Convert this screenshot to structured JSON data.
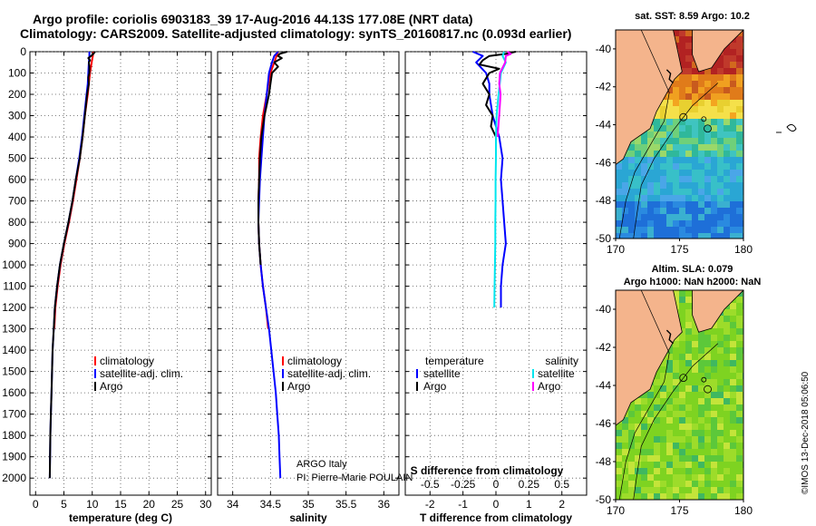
{
  "header": {
    "line1": "Argo profile: coriolis 6903183_39 17-Aug-2016 44.13S 177.08E (NRT data)",
    "line2": "Climatology: CARS2009. Satellite-adjusted climatology: synTS_20160817.nc (0.093d earlier)"
  },
  "colors": {
    "climatology": "#ff0000",
    "satellite": "#0000ff",
    "argo": "#000000",
    "s_satellite": "#00e5ee",
    "s_argo": "#ff00ff",
    "land": "#f4b48c",
    "grid": "#555555"
  },
  "chart_data": [
    {
      "id": "temperature",
      "type": "line",
      "xlabel": "temperature (deg C)",
      "xlim": [
        -1,
        31
      ],
      "xticks": [
        0,
        5,
        10,
        15,
        20,
        25,
        30
      ],
      "xtick_labels": [
        "0",
        "5",
        "10",
        "15",
        "20",
        "25",
        "30"
      ],
      "ylim": [
        2080,
        0
      ],
      "yticks": [
        0,
        100,
        200,
        300,
        400,
        500,
        600,
        700,
        800,
        900,
        1000,
        1100,
        1200,
        1300,
        1400,
        1500,
        1600,
        1700,
        1800,
        1900,
        2000
      ],
      "ytick_labels": [
        "0",
        "100",
        "200",
        "300",
        "400",
        "500",
        "600",
        "700",
        "800",
        "900",
        "1000",
        "1100",
        "1200",
        "1300",
        "1400",
        "1500",
        "1600",
        "1700",
        "1800",
        "1900",
        "2000"
      ],
      "legend": [
        "climatology",
        "satellite-adj. clim.",
        "Argo"
      ],
      "series": [
        {
          "name": "climatology",
          "color": "#ff0000",
          "depth": [
            0,
            20,
            50,
            100,
            150,
            200,
            300,
            400,
            500,
            600,
            700,
            800,
            900,
            1000,
            1100,
            1200,
            1300
          ],
          "values": [
            10.2,
            10.1,
            9.9,
            9.6,
            9.4,
            9.2,
            8.7,
            8.3,
            7.8,
            7.2,
            6.6,
            5.9,
            5.1,
            4.4,
            3.9,
            3.5,
            3.3
          ]
        },
        {
          "name": "satellite-adj. clim.",
          "color": "#0000ff",
          "depth": [
            0,
            20,
            50,
            100,
            150,
            200,
            300,
            400,
            500,
            600,
            700,
            800,
            900,
            1000,
            1100,
            1200,
            1300,
            1400,
            1500,
            1600,
            1700,
            1800,
            1900,
            2000
          ],
          "values": [
            9.5,
            9.5,
            9.4,
            9.3,
            9.2,
            9.0,
            8.6,
            8.2,
            7.7,
            7.1,
            6.5,
            5.8,
            5.0,
            4.3,
            3.8,
            3.4,
            3.2,
            3.0,
            2.9,
            2.8,
            2.7,
            2.6,
            2.55,
            2.5
          ]
        },
        {
          "name": "Argo",
          "color": "#000000",
          "depth": [
            0,
            10,
            20,
            30,
            40,
            50,
            70,
            100,
            120,
            150,
            200,
            250,
            300,
            400,
            500,
            600,
            700,
            800,
            900,
            1000,
            1100,
            1200,
            1300,
            1400,
            1500,
            1600,
            1700,
            1800,
            1900,
            2000
          ],
          "values": [
            10.5,
            10.2,
            9.8,
            9.3,
            9.6,
            9.4,
            9.5,
            9.5,
            9.3,
            9.4,
            9.1,
            8.9,
            8.7,
            8.3,
            7.8,
            7.1,
            6.5,
            5.8,
            5.0,
            4.3,
            3.8,
            3.4,
            3.2,
            3.0,
            2.9,
            2.8,
            2.7,
            2.6,
            2.55,
            2.5
          ]
        }
      ]
    },
    {
      "id": "salinity",
      "type": "line",
      "xlabel": "salinity",
      "xlim": [
        33.8,
        36.2
      ],
      "xticks": [
        34,
        34.5,
        35,
        35.5,
        36
      ],
      "xtick_labels": [
        "34",
        "34.5",
        "35",
        "35.5",
        "36"
      ],
      "ylim": [
        2080,
        0
      ],
      "legend": [
        "climatology",
        "satellite-adj. clim.",
        "Argo"
      ],
      "series": [
        {
          "name": "climatology",
          "color": "#ff0000",
          "depth": [
            0,
            20,
            50,
            100,
            200,
            300,
            400,
            500,
            600,
            700,
            800,
            900,
            1000,
            1100,
            1200,
            1300
          ],
          "values": [
            34.6,
            34.58,
            34.55,
            34.5,
            34.45,
            34.4,
            34.37,
            34.35,
            34.35,
            34.34,
            34.34,
            34.35,
            34.37,
            34.4,
            34.44,
            34.47
          ]
        },
        {
          "name": "satellite-adj. clim.",
          "color": "#0000ff",
          "depth": [
            0,
            20,
            50,
            100,
            200,
            300,
            400,
            500,
            600,
            700,
            800,
            900,
            1000,
            1100,
            1200,
            1300,
            1400,
            1500,
            1600,
            1700,
            1800,
            1900,
            2000
          ],
          "values": [
            34.6,
            34.55,
            34.52,
            34.48,
            34.45,
            34.42,
            34.4,
            34.38,
            34.36,
            34.35,
            34.34,
            34.35,
            34.37,
            34.4,
            34.44,
            34.48,
            34.51,
            34.54,
            34.57,
            34.59,
            34.61,
            34.62,
            34.63
          ]
        },
        {
          "name": "Argo",
          "color": "#000000",
          "depth": [
            0,
            10,
            20,
            30,
            50,
            70,
            100,
            150,
            200,
            300,
            400,
            500,
            600,
            700,
            800,
            900,
            1000
          ],
          "values": [
            34.72,
            34.62,
            34.6,
            34.65,
            34.55,
            34.6,
            34.52,
            34.5,
            34.48,
            34.42,
            34.38,
            34.36,
            34.35,
            34.34,
            34.34,
            34.35,
            34.37
          ]
        }
      ]
    },
    {
      "id": "difference",
      "type": "line",
      "xlabel": "T difference from climatology",
      "top_label": "S difference from climatology",
      "xlim": [
        -2.75,
        2.75
      ],
      "xticks": [
        -2,
        -1,
        0,
        1,
        2
      ],
      "xtick_labels": [
        "-2",
        "-1",
        "0",
        "1",
        "2"
      ],
      "s_ticks": [
        -0.5,
        -0.25,
        0,
        0.25,
        0.5
      ],
      "s_tick_labels": [
        "-0.5",
        "-0.25",
        "0",
        "0.25",
        "0.5"
      ],
      "ylim": [
        2080,
        0
      ],
      "legend_t_title": "temperature",
      "legend_s_title": "salinity",
      "legend_t": [
        "satellite",
        "Argo"
      ],
      "legend_s": [
        "satellite",
        "Argo"
      ],
      "series": [
        {
          "name": "T satellite",
          "color": "#0000ff",
          "depth": [
            0,
            20,
            50,
            100,
            150,
            200,
            300,
            400,
            500,
            600,
            700,
            800,
            900,
            1000,
            1100,
            1200
          ],
          "values": [
            -0.7,
            -0.4,
            -0.6,
            -0.3,
            -0.2,
            -0.2,
            -0.1,
            0.1,
            0.2,
            0.15,
            0.2,
            0.25,
            0.3,
            0.2,
            0.15,
            0.15
          ]
        },
        {
          "name": "T Argo",
          "color": "#000000",
          "depth": [
            0,
            10,
            20,
            40,
            60,
            80,
            100,
            150,
            200,
            250,
            300,
            350,
            400
          ],
          "values": [
            0.6,
            0.3,
            -0.2,
            -0.4,
            -0.5,
            0.1,
            -0.2,
            -0.4,
            -0.2,
            -0.3,
            -0.1,
            -0.15,
            0.0
          ]
        },
        {
          "name": "S satellite",
          "color": "#00e5ee",
          "depth": [
            0,
            20,
            50,
            100,
            200,
            300,
            400,
            500,
            600,
            700,
            800,
            900,
            1000,
            1100,
            1200
          ],
          "values": [
            0.25,
            0.2,
            0.3,
            0.15,
            0.08,
            0.02,
            0.0,
            0.0,
            -0.01,
            -0.01,
            -0.02,
            -0.02,
            -0.03,
            -0.04,
            -0.05
          ]
        },
        {
          "name": "S Argo",
          "color": "#ff00ff",
          "depth": [
            0,
            10,
            20,
            50,
            100,
            150,
            200,
            300,
            400
          ],
          "values": [
            0.35,
            0.45,
            0.3,
            0.28,
            0.12,
            0.1,
            0.14,
            0.1,
            0.05
          ]
        }
      ]
    }
  ],
  "maps": {
    "sst": {
      "title": "sat. SST: 8.59 Argo: 10.2",
      "yticks": [
        -40,
        -42,
        -44,
        -46,
        -48,
        -50
      ],
      "ytick_labels": [
        "-40",
        "-42",
        "-44",
        "-46",
        "-48",
        "-50"
      ],
      "xticks": [
        170,
        175,
        180
      ],
      "xtick_labels": [
        "170",
        "175",
        "180"
      ]
    },
    "sla": {
      "title1": "Altim. SLA: 0.079",
      "title2": "Argo h1000: NaN h2000: NaN",
      "yticks": [
        -40,
        -42,
        -44,
        -46,
        -48,
        -50
      ],
      "ytick_labels": [
        "-40",
        "-42",
        "-44",
        "-46",
        "-48",
        "-50"
      ],
      "xticks": [
        170,
        175,
        180
      ],
      "xtick_labels": [
        "170",
        "175",
        "180"
      ]
    }
  },
  "credits": {
    "line1": "ARGO Italy",
    "line2": "PI: Pierre-Marie POULAIN",
    "stamp": "©IMOS 13-Dec-2018 05:06:50"
  }
}
